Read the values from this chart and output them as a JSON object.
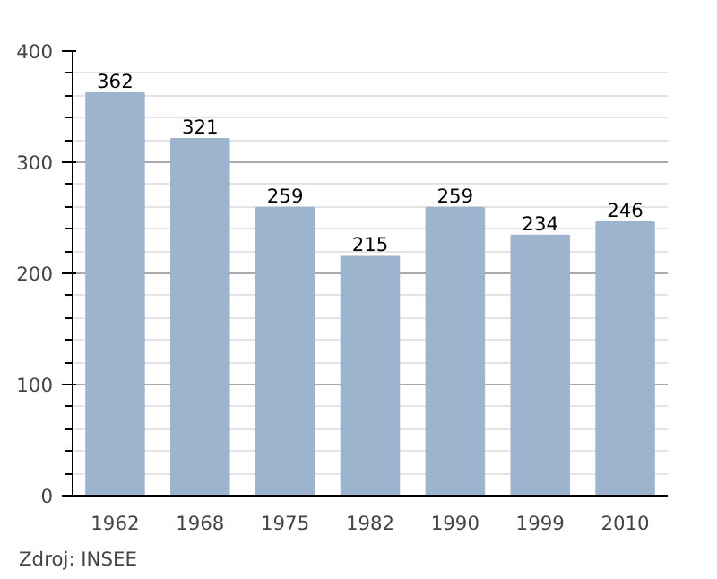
{
  "chart_data": {
    "type": "bar",
    "categories": [
      "1962",
      "1968",
      "1975",
      "1982",
      "1990",
      "1999",
      "2010"
    ],
    "values": [
      362,
      321,
      259,
      215,
      259,
      234,
      246
    ],
    "color": "#9db4cf",
    "ylim": [
      0,
      400
    ],
    "yticks": [
      0,
      100,
      200,
      300,
      400
    ],
    "grid": "y",
    "data_labels": true,
    "annotations": [
      "Zdroj: INSEE"
    ]
  }
}
